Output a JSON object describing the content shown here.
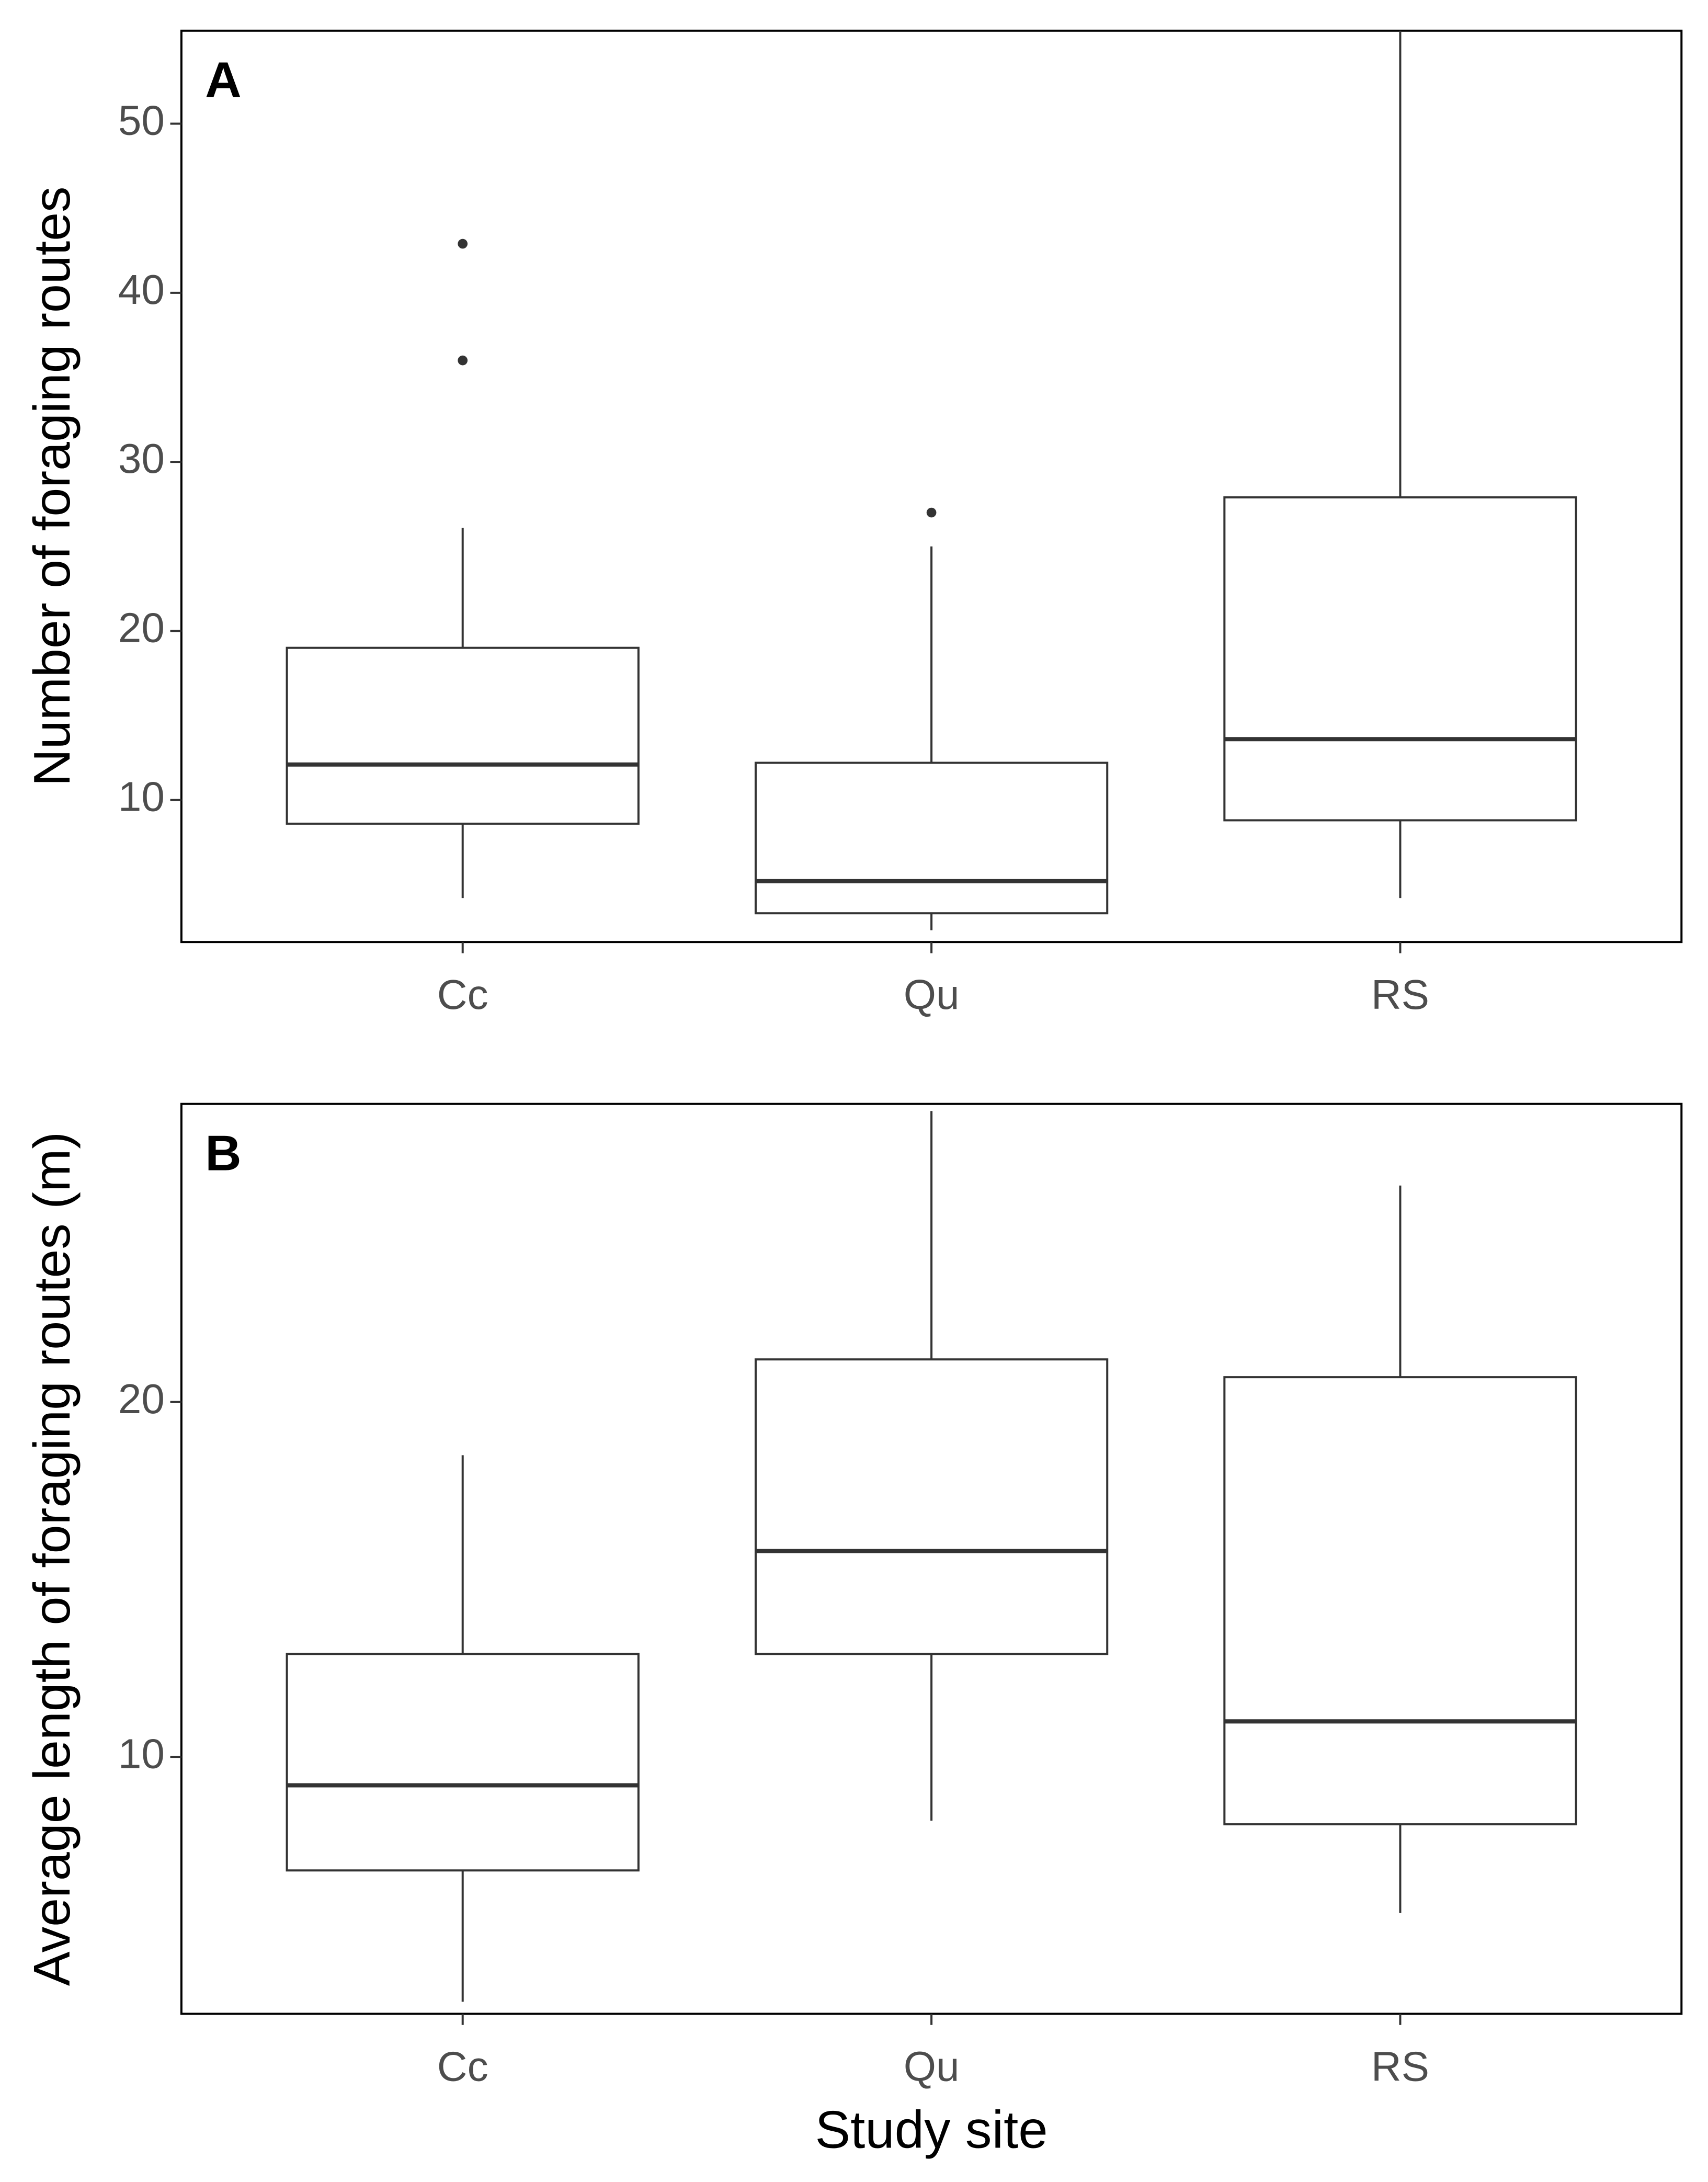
{
  "chart_data": [
    {
      "type": "box",
      "label": "A",
      "ylabel": "Number of foraging routes",
      "categories": [
        "Cc",
        "Qu",
        "RS"
      ],
      "boxes": [
        {
          "whisker_low": 4.2,
          "q1": 8.6,
          "median": 12.1,
          "q3": 19.0,
          "whisker_high": 26.1,
          "outliers": [
            36,
            42.9
          ]
        },
        {
          "whisker_low": 2.3,
          "q1": 3.3,
          "median": 5.2,
          "q3": 12.2,
          "whisker_high": 25.0,
          "outliers": [
            27
          ]
        },
        {
          "whisker_low": 4.2,
          "q1": 8.8,
          "median": 13.6,
          "q3": 27.9,
          "whisker_high": 55.5,
          "outliers": []
        }
      ],
      "ylim": [
        1.6,
        55.5
      ],
      "yticks": [
        10,
        20,
        30,
        40,
        50
      ]
    },
    {
      "type": "box",
      "label": "B",
      "ylabel": "Average length of foraging routes (m)",
      "xlabel": "Study site",
      "categories": [
        "Cc",
        "Qu",
        "RS"
      ],
      "boxes": [
        {
          "whisker_low": 3.1,
          "q1": 6.8,
          "median": 9.2,
          "q3": 12.9,
          "whisker_high": 18.5,
          "outliers": []
        },
        {
          "whisker_low": 8.2,
          "q1": 12.9,
          "median": 15.8,
          "q3": 21.2,
          "whisker_high": 28.2,
          "outliers": []
        },
        {
          "whisker_low": 5.6,
          "q1": 8.1,
          "median": 11.0,
          "q3": 20.7,
          "whisker_high": 26.1,
          "outliers": []
        }
      ],
      "ylim": [
        2.76,
        28.4
      ],
      "yticks": [
        10,
        20
      ]
    }
  ]
}
